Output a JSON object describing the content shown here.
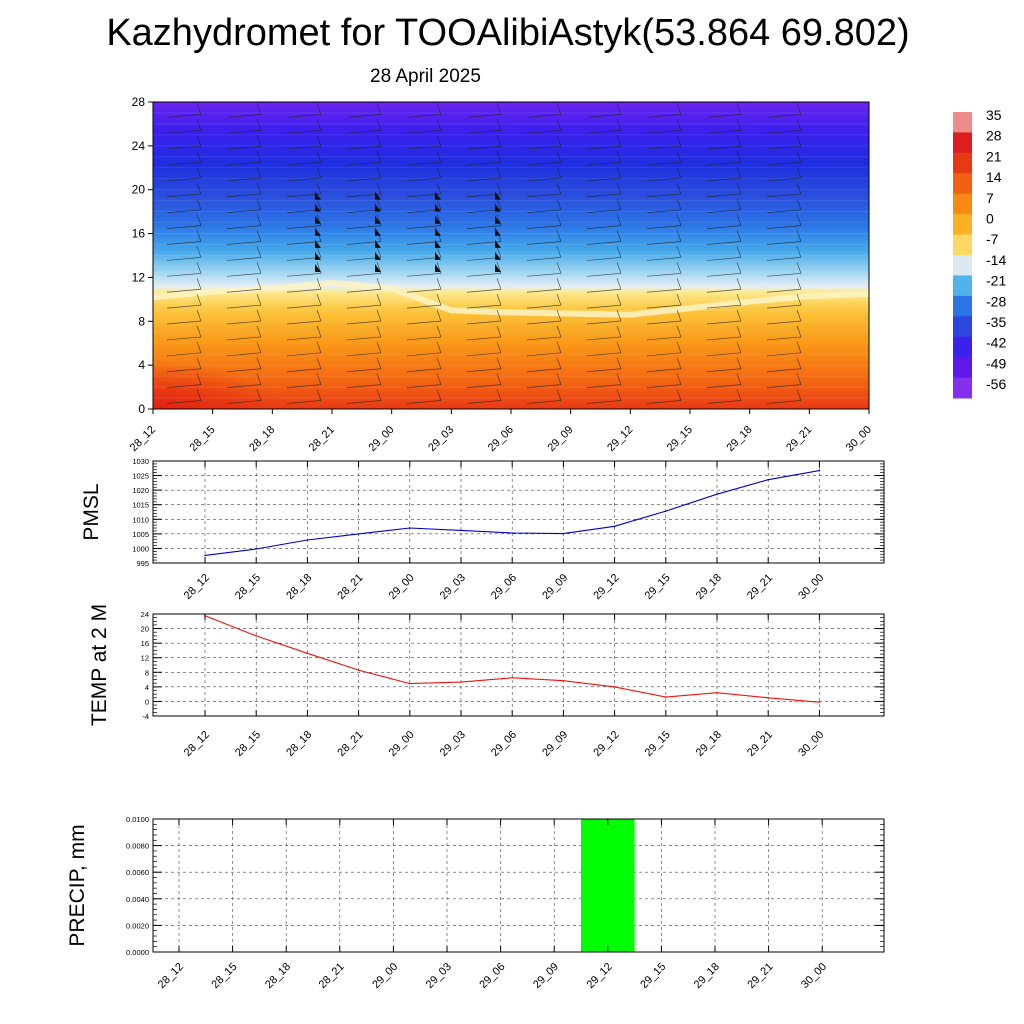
{
  "title": "Kazhydromet for TOOAlibiAstyk(53.864 69.802)",
  "subtitle": "28 April 2025",
  "chart_data": [
    {
      "type": "heatmap",
      "name": "vertical-profile",
      "x_ticks": [
        "28_12",
        "28_15",
        "28_18",
        "28_21",
        "29_00",
        "29_03",
        "29_06",
        "29_09",
        "29_12",
        "29_15",
        "29_18",
        "29_21",
        "30_00"
      ],
      "y_ticks": [
        "0",
        "4",
        "8",
        "12",
        "16",
        "20",
        "24",
        "28"
      ],
      "ylim": [
        0,
        28
      ],
      "colorbar": {
        "labels": [
          "35",
          "28",
          "21",
          "14",
          "7",
          "0",
          "-7",
          "-14",
          "-21",
          "-28",
          "-35",
          "-42",
          "-49",
          "-56"
        ],
        "colors": [
          "#ee8c8c",
          "#dd1e1e",
          "#e53a14",
          "#f06010",
          "#f88a14",
          "#fcb024",
          "#fdd862",
          "#dce8f2",
          "#50b4ea",
          "#2a74e6",
          "#2e46de",
          "#3a22ec",
          "#5e18e8",
          "#8430ee"
        ]
      },
      "freezing_level": [
        10.2,
        10.7,
        11.0,
        11.5,
        11.0,
        9.0,
        8.8,
        8.7,
        8.6,
        9.2,
        9.8,
        10.3,
        10.5
      ],
      "flag_columns": [
        "28_21",
        "29_00",
        "29_03",
        "29_06"
      ]
    },
    {
      "type": "line",
      "name": "pmsl",
      "ylabel": "PMSL",
      "categories": [
        "28_12",
        "28_15",
        "28_18",
        "28_21",
        "29_00",
        "29_03",
        "29_06",
        "29_09",
        "29_12",
        "29_15",
        "29_18",
        "29_21",
        "30_00"
      ],
      "y_ticks": [
        "995",
        "1000",
        "1005",
        "1010",
        "1015",
        "1020",
        "1025",
        "1030"
      ],
      "ylim": [
        995,
        1030
      ],
      "color": "#0000cc",
      "values": [
        997.6,
        999.8,
        1002.9,
        1005.0,
        1007.0,
        1006.2,
        1005.3,
        1005.1,
        1007.6,
        1012.8,
        1018.6,
        1023.6,
        1026.7
      ]
    },
    {
      "type": "line",
      "name": "temp2m",
      "ylabel": "TEMP at 2 M",
      "categories": [
        "28_12",
        "28_15",
        "28_18",
        "28_21",
        "29_00",
        "29_03",
        "29_06",
        "29_09",
        "29_12",
        "29_15",
        "29_18",
        "29_21",
        "30_00"
      ],
      "y_ticks": [
        "-4",
        "0",
        "4",
        "8",
        "12",
        "16",
        "20",
        "24"
      ],
      "ylim": [
        -4,
        24
      ],
      "color": "#ee1111",
      "values": [
        23.5,
        18.0,
        13.2,
        8.6,
        4.9,
        5.3,
        6.5,
        5.7,
        4.0,
        1.2,
        2.4,
        1.0,
        -0.2
      ]
    },
    {
      "type": "bar",
      "name": "precip",
      "ylabel": "PRECIP, mm",
      "categories": [
        "28_12",
        "28_15",
        "28_18",
        "28_21",
        "29_00",
        "29_03",
        "29_06",
        "29_09",
        "29_12",
        "29_15",
        "29_18",
        "29_21",
        "30_00"
      ],
      "y_ticks": [
        "0.0000",
        "0.0020",
        "0.0040",
        "0.0060",
        "0.0080",
        "0.0100"
      ],
      "ylim": [
        0,
        0.01
      ],
      "color": "#00ff00",
      "values": [
        0,
        0,
        0,
        0,
        0,
        0,
        0,
        0,
        0.01,
        0,
        0,
        0,
        0
      ]
    }
  ]
}
